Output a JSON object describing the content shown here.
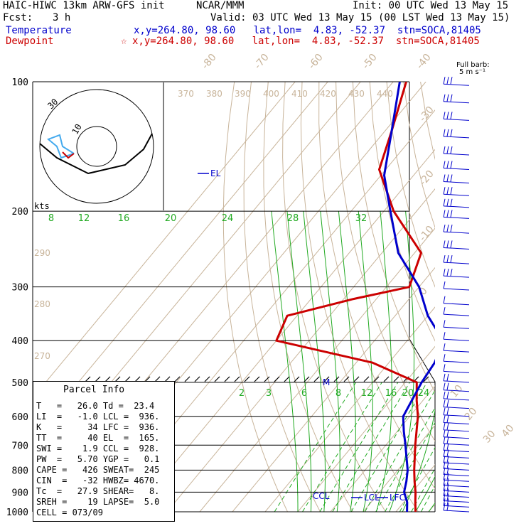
{
  "header": {
    "model": "HAIC-HIWC 13km ARW-GFS init",
    "org": "NCAR/MMM",
    "init": "Init: 00 UTC Wed 13 May 15",
    "fcst_label": "Fcst:",
    "fcst_value": "3 h",
    "valid": "Valid: 03 UTC Wed 13 May 15 (00 LST Wed 13 May 15)",
    "temp_label": "Temperature",
    "temp_loc": "x,y=264.80, 98.60   lat,lon=  4.83, -52.37  stn=SOCA,81405",
    "dew_label": "Dewpoint",
    "dew_marker": "☆",
    "dew_loc": "x,y=264.80, 98.60   lat,lon=  4.83, -52.37  stn=SOCA,81405"
  },
  "colors": {
    "temperature": "#cc0000",
    "dewpoint": "#0000cc",
    "parcel": "#0000cc",
    "dry_adiabat": "#c8b49a",
    "moist_adiabat": "#22aa22",
    "mixing_ratio": "#22aa22",
    "isotherm": "#c8b49a",
    "isobar": "#000000"
  },
  "wind_key": {
    "line1": "Full barb:",
    "line2": "5 m s⁻¹"
  },
  "hodograph": {
    "unit": "kts",
    "ring_labels": [
      "10",
      "30"
    ],
    "profile": [
      [
        -50,
        -8
      ],
      [
        -40,
        -14
      ],
      [
        -25,
        -20
      ],
      [
        -10,
        -24
      ],
      [
        5,
        -23
      ],
      [
        20,
        -20
      ],
      [
        30,
        -10
      ],
      [
        40,
        0
      ]
    ]
  },
  "parcel_info": {
    "title": "Parcel Info",
    "rows": [
      "T   =   26.0 Td =  23.4",
      "LI  =   -1.0 LCL =  936.",
      "K   =     34 LFC =  936.",
      "TT  =     40 EL  =  165.",
      "SWI =    1.9 CCL =  928.",
      "PW  =   5.70 YGP =   0.1",
      "CAPE =   426 SWEAT=  245",
      "CIN  =   -32 HWBZ= 4670.",
      "Tc  =   27.9 SHEAR=   8.",
      "SREH =    19 LAPSE=  5.0",
      "CELL = 073/09"
    ]
  },
  "chart_data": {
    "type": "line",
    "subtype": "skew-T log-P",
    "ylabel": "",
    "xlabel": "",
    "pressure_levels": [
      100,
      200,
      300,
      400,
      500,
      600,
      700,
      800,
      900,
      1000
    ],
    "isotherm_labels": [
      -80,
      -70,
      -60,
      -50,
      -40,
      -30,
      -20,
      -10,
      0,
      10,
      20,
      30,
      40
    ],
    "theta_labels_upper": [
      370,
      380,
      390,
      400,
      410,
      420,
      430,
      440
    ],
    "theta_labels_left": [
      290,
      280,
      270
    ],
    "mixing_ratio_labels_upper": [
      8,
      12,
      16,
      20,
      24,
      28,
      32
    ],
    "mixing_ratio_labels_lower": [
      2,
      3,
      6,
      8,
      12,
      16,
      20,
      24
    ],
    "ylim": [
      1000,
      100
    ],
    "series": [
      {
        "name": "Temperature",
        "points": [
          [
            1000,
            26.0
          ],
          [
            950,
            23.5
          ],
          [
            900,
            21.0
          ],
          [
            850,
            18.0
          ],
          [
            800,
            15.0
          ],
          [
            700,
            9.0
          ],
          [
            600,
            2.5
          ],
          [
            550,
            -2.0
          ],
          [
            500,
            -6.5
          ],
          [
            450,
            -25
          ],
          [
            400,
            -60
          ],
          [
            350,
            -63
          ],
          [
            320,
            -47
          ],
          [
            300,
            -33
          ],
          [
            250,
            -38
          ],
          [
            200,
            -57
          ],
          [
            160,
            -72
          ],
          [
            130,
            -78
          ],
          [
            100,
            -86
          ]
        ]
      },
      {
        "name": "Dewpoint",
        "points": [
          [
            1000,
            23.4
          ],
          [
            950,
            21.0
          ],
          [
            900,
            17.5
          ],
          [
            850,
            15.5
          ],
          [
            800,
            13.0
          ],
          [
            700,
            6.0
          ],
          [
            650,
            2.0
          ],
          [
            600,
            -2.0
          ],
          [
            500,
            -5.0
          ],
          [
            450,
            -6.0
          ],
          [
            400,
            -9.0
          ],
          [
            350,
            -20
          ],
          [
            300,
            -30
          ],
          [
            250,
            -45
          ],
          [
            200,
            -58
          ],
          [
            165,
            -69
          ],
          [
            130,
            -78
          ],
          [
            100,
            -88
          ]
        ]
      }
    ],
    "annotations": [
      "EL",
      "CCL",
      "LCL",
      "LFC",
      "M"
    ],
    "wind_barbs": {
      "pressures": [
        102,
        112,
        123,
        135,
        148,
        160,
        172,
        184,
        196,
        208,
        225,
        245,
        265,
        285,
        305,
        330,
        350,
        375,
        400,
        425,
        450,
        475,
        500,
        525,
        550,
        575,
        600,
        625,
        650,
        675,
        700,
        725,
        750,
        775,
        800,
        825,
        850,
        875,
        900,
        925,
        950,
        975,
        1000
      ]
    }
  }
}
